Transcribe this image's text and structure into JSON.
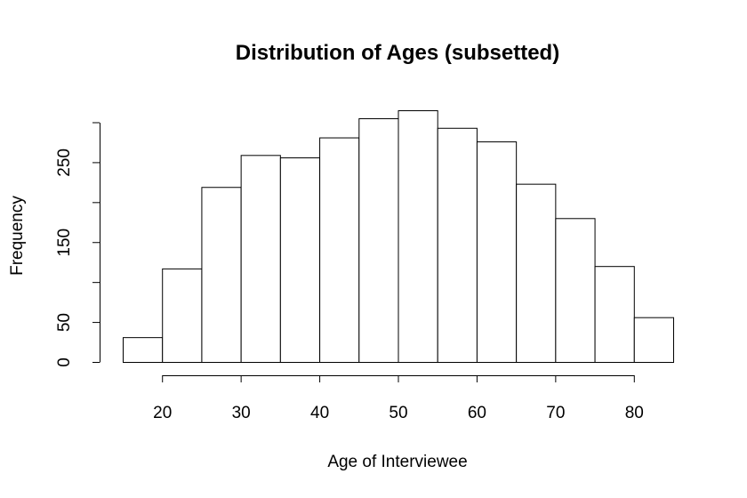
{
  "chart_data": {
    "type": "bar",
    "title": "Distribution of Ages (subsetted)",
    "xlabel": "Age of Interviewee",
    "ylabel": "Frequency",
    "bin_edges": [
      15,
      20,
      25,
      30,
      35,
      40,
      45,
      50,
      55,
      60,
      65,
      70,
      75,
      80,
      85
    ],
    "values": [
      31,
      117,
      219,
      259,
      256,
      281,
      305,
      315,
      293,
      276,
      223,
      180,
      120,
      56
    ],
    "xlim": [
      15,
      85
    ],
    "ylim": [
      0,
      315
    ],
    "x_ticks": [
      20,
      30,
      40,
      50,
      60,
      70,
      80
    ],
    "y_ticks": [
      0,
      50,
      100,
      150,
      200,
      250,
      300
    ],
    "y_tick_labels": [
      "0",
      "50",
      "",
      "150",
      "",
      "250",
      ""
    ],
    "grid": false,
    "bar_fill": "#ffffff",
    "bar_stroke": "#000000"
  }
}
